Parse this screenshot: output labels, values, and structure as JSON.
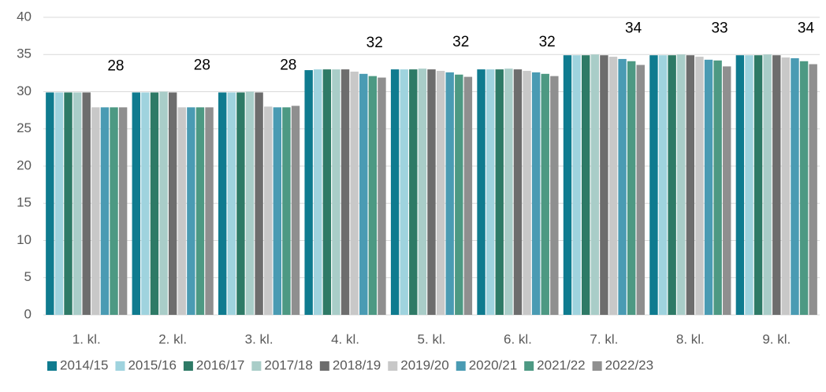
{
  "chart_data": {
    "type": "bar",
    "categories": [
      "1. kl.",
      "2. kl.",
      "3. kl.",
      "4. kl.",
      "5. kl.",
      "6. kl.",
      "7. kl.",
      "8. kl.",
      "9. kl."
    ],
    "series": [
      {
        "name": "2014/15",
        "color": "#0f7b8f",
        "values": [
          29.9,
          29.9,
          29.9,
          32.9,
          33.0,
          33.0,
          34.9,
          34.9,
          34.9
        ]
      },
      {
        "name": "2015/16",
        "color": "#9fd3de",
        "values": [
          29.9,
          29.9,
          29.9,
          33.0,
          33.0,
          33.0,
          34.9,
          34.9,
          34.9
        ]
      },
      {
        "name": "2016/17",
        "color": "#2e7a66",
        "values": [
          29.9,
          29.9,
          29.9,
          33.0,
          33.0,
          33.0,
          34.9,
          34.9,
          34.9
        ]
      },
      {
        "name": "2017/18",
        "color": "#a9cdc8",
        "values": [
          29.9,
          30.0,
          30.0,
          33.0,
          33.1,
          33.1,
          35.0,
          35.0,
          35.0
        ]
      },
      {
        "name": "2018/19",
        "color": "#6d6d6d",
        "values": [
          29.9,
          29.9,
          29.9,
          33.0,
          33.0,
          33.0,
          34.9,
          34.9,
          34.9
        ]
      },
      {
        "name": "2019/20",
        "color": "#c8c8c8",
        "values": [
          27.9,
          27.9,
          28.0,
          32.7,
          32.8,
          32.8,
          34.7,
          34.7,
          34.6
        ]
      },
      {
        "name": "2020/21",
        "color": "#4a9bb3",
        "values": [
          27.9,
          27.9,
          27.9,
          32.4,
          32.6,
          32.6,
          34.4,
          34.3,
          34.5
        ]
      },
      {
        "name": "2021/22",
        "color": "#4d9983",
        "values": [
          27.9,
          27.9,
          27.9,
          32.1,
          32.3,
          32.4,
          34.1,
          34.2,
          34.1
        ]
      },
      {
        "name": "2022/23",
        "color": "#8f8f8f",
        "values": [
          27.9,
          27.9,
          28.1,
          31.9,
          32.0,
          32.1,
          33.6,
          33.4,
          33.7
        ],
        "value_labels": [
          "28",
          "28",
          "28",
          "32",
          "32",
          "32",
          "34",
          "33",
          "34"
        ]
      }
    ],
    "ylim": [
      0,
      40
    ],
    "yticks": [
      0,
      5,
      10,
      15,
      20,
      25,
      30,
      35,
      40
    ],
    "grid": true,
    "legend": "bottom"
  }
}
